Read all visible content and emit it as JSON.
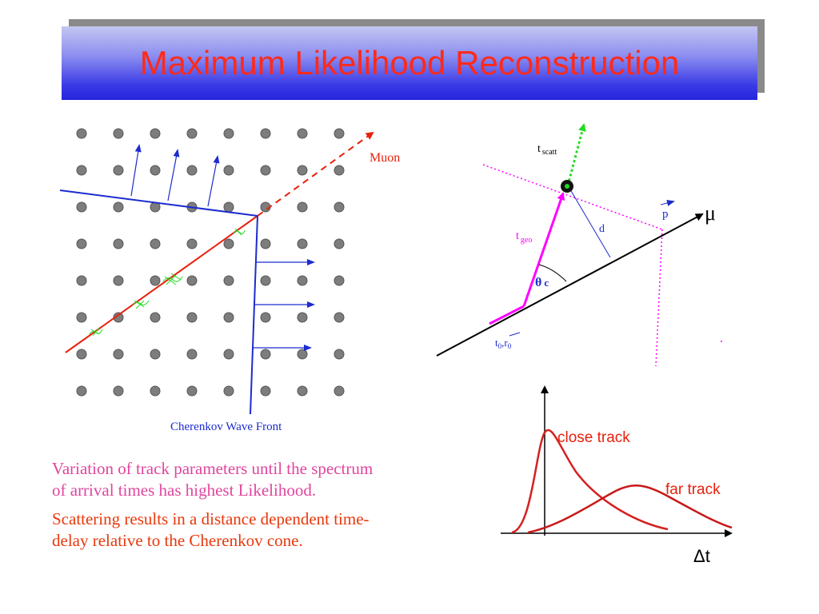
{
  "title": "Maximum Likelihood Reconstruction",
  "diagram_left": {
    "muon_label": "Muon",
    "wavefront_label": "Cherenkov Wave Front"
  },
  "diagram_right": {
    "t_scatt_main": "t",
    "t_scatt_sub": "scatt",
    "t_geo_main": "t",
    "t_geo_sub": "geo",
    "d_label": "d",
    "theta_main": "θ",
    "theta_sub": "c",
    "p_label": "p",
    "mu_label": "μ",
    "origin_t": "t",
    "origin_t_sub": "0",
    "origin_r": "r",
    "origin_r_sub": "0"
  },
  "diagram_time": {
    "close_label": "close track",
    "far_label": "far track",
    "axis_label": "Δt"
  },
  "text": {
    "line1": "Variation of track parameters until the spectrum",
    "line2": "of arrival times has highest Likelihood.",
    "line3": "Scattering results in a distance dependent time-",
    "line4": "delay relative to the Cherenkov cone."
  },
  "colors": {
    "title_text": "#ff2a1a",
    "track_red": "#e8200c",
    "wavefront_blue": "#1c2ccf",
    "magenta": "#ff00ff",
    "scatter_green": "#22dd22"
  }
}
